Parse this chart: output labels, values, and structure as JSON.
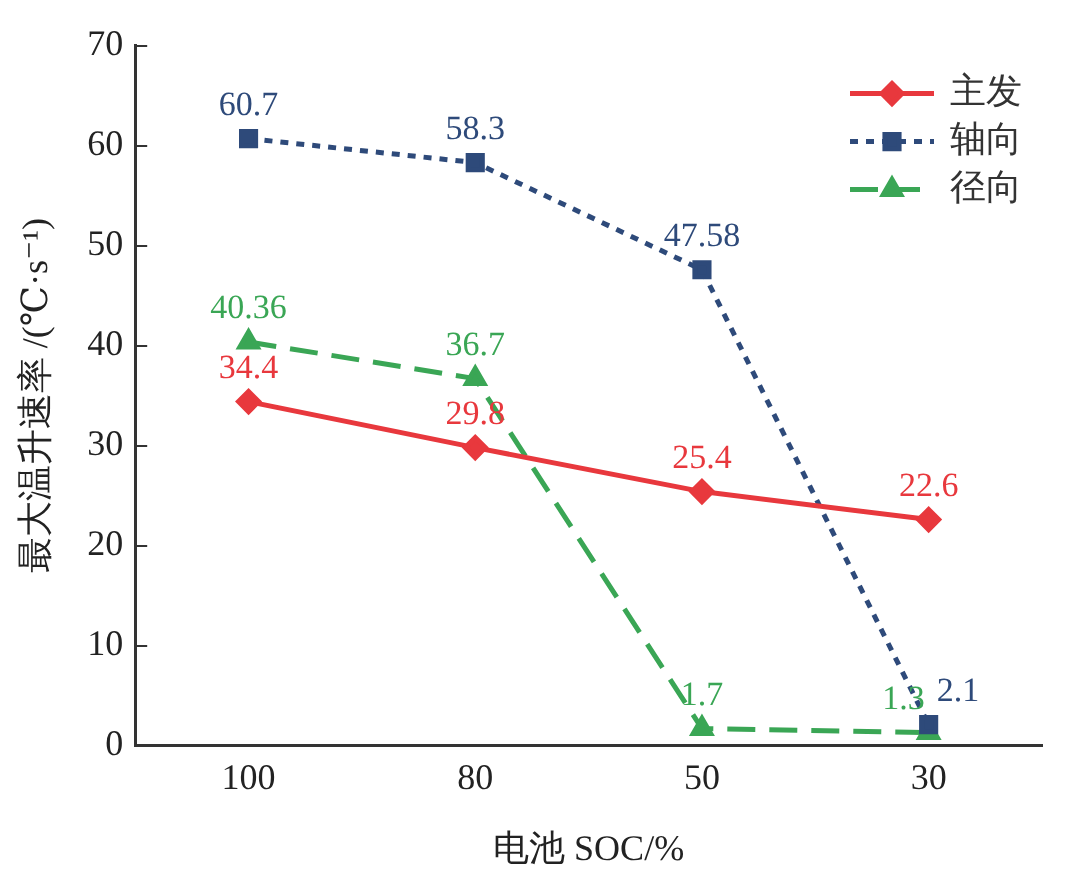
{
  "chart_data": {
    "type": "line",
    "xlabel": "电池 SOC/%",
    "ylabel": "最大温升速率 /(℃·s⁻¹)",
    "categories": [
      "100",
      "80",
      "50",
      "30"
    ],
    "ylim": [
      0,
      70
    ],
    "yticks": [
      0,
      10,
      20,
      30,
      40,
      50,
      60,
      70
    ],
    "grid": false,
    "legend": "top right",
    "data_labels": true,
    "series": [
      {
        "name": "主发",
        "color": "#e8383d",
        "marker": "diamond",
        "line_style": "solid",
        "values": [
          34.4,
          29.8,
          25.4,
          22.6
        ]
      },
      {
        "name": "轴向",
        "color": "#2e4a7a",
        "marker": "square",
        "line_style": "dotted",
        "values": [
          60.7,
          58.3,
          47.58,
          2.1
        ]
      },
      {
        "name": "径向",
        "color": "#3aa655",
        "marker": "triangle",
        "line_style": "dashed",
        "values": [
          40.36,
          36.7,
          1.7,
          1.3
        ]
      }
    ]
  }
}
